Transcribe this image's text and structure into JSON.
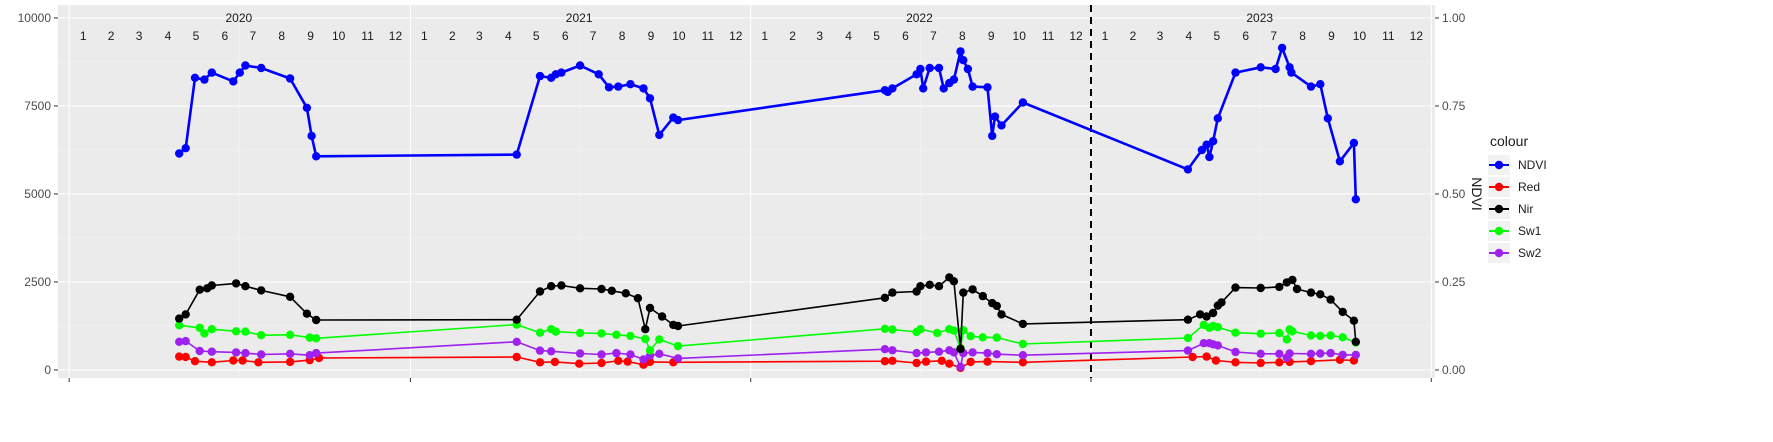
{
  "chart_data": {
    "type": "line",
    "x_axis": {
      "unit": "month",
      "start": "2020-01",
      "end": "2023-12",
      "years": [
        "2020",
        "2021",
        "2022",
        "2023"
      ],
      "month_labels": [
        "1",
        "2",
        "3",
        "4",
        "5",
        "6",
        "7",
        "8",
        "9",
        "10",
        "11",
        "12"
      ],
      "grid": true
    },
    "y_axis_left": {
      "min": 0,
      "max": 10000,
      "ticks": [
        0,
        2500,
        5000,
        7500,
        10000
      ],
      "tick_labels": [
        "0",
        "2500",
        "5000",
        "7500",
        "10000"
      ]
    },
    "y_axis_right": {
      "title": "NDVI",
      "min": 0,
      "max": 1,
      "ticks": [
        0,
        0.25,
        0.5,
        0.75,
        1
      ],
      "tick_labels": [
        "0.00",
        "0.25",
        "0.50",
        "0.75",
        "1.00"
      ]
    },
    "reference_line": {
      "style": "dashed",
      "x": "2023-01-01",
      "color": "#000000"
    },
    "legend": {
      "title": "colour",
      "position": "right",
      "entries": [
        "NDVI",
        "Red",
        "Nir",
        "Sw1",
        "Sw2"
      ]
    },
    "series": [
      {
        "name": "NDVI",
        "color": "#0000ff",
        "axis": "right",
        "points": [
          [
            "2020-04-28",
            0.615
          ],
          [
            "2020-05-05",
            0.63
          ],
          [
            "2020-05-15",
            0.83
          ],
          [
            "2020-05-25",
            0.825
          ],
          [
            "2020-06-02",
            0.845
          ],
          [
            "2020-06-25",
            0.82
          ],
          [
            "2020-07-02",
            0.845
          ],
          [
            "2020-07-08",
            0.865
          ],
          [
            "2020-07-25",
            0.858
          ],
          [
            "2020-08-25",
            0.828
          ],
          [
            "2020-09-12",
            0.745
          ],
          [
            "2020-09-17",
            0.665
          ],
          [
            "2020-09-22",
            0.607
          ],
          [
            "2021-04-25",
            0.612
          ],
          [
            "2021-05-20",
            0.835
          ],
          [
            "2021-06-01",
            0.83
          ],
          [
            "2021-06-06",
            0.84
          ],
          [
            "2021-06-12",
            0.845
          ],
          [
            "2021-07-02",
            0.865
          ],
          [
            "2021-07-22",
            0.84
          ],
          [
            "2021-08-02",
            0.803
          ],
          [
            "2021-08-12",
            0.805
          ],
          [
            "2021-08-25",
            0.812
          ],
          [
            "2021-09-08",
            0.8
          ],
          [
            "2021-09-15",
            0.772
          ],
          [
            "2021-09-25",
            0.668
          ],
          [
            "2021-10-10",
            0.717
          ],
          [
            "2021-10-15",
            0.71
          ],
          [
            "2022-05-25",
            0.795
          ],
          [
            "2022-05-28",
            0.79
          ],
          [
            "2022-06-02",
            0.8
          ],
          [
            "2022-06-28",
            0.84
          ],
          [
            "2022-07-02",
            0.855
          ],
          [
            "2022-07-05",
            0.8
          ],
          [
            "2022-07-12",
            0.858
          ],
          [
            "2022-07-22",
            0.858
          ],
          [
            "2022-07-27",
            0.8
          ],
          [
            "2022-08-02",
            0.815
          ],
          [
            "2022-08-07",
            0.825
          ],
          [
            "2022-08-14",
            0.905
          ],
          [
            "2022-08-17",
            0.88
          ],
          [
            "2022-08-22",
            0.855
          ],
          [
            "2022-08-27",
            0.805
          ],
          [
            "2022-09-12",
            0.803
          ],
          [
            "2022-09-17",
            0.665
          ],
          [
            "2022-09-20",
            0.72
          ],
          [
            "2022-09-27",
            0.695
          ],
          [
            "2022-10-20",
            0.76
          ],
          [
            "2023-04-15",
            0.57
          ],
          [
            "2023-04-30",
            0.625
          ],
          [
            "2023-05-05",
            0.64
          ],
          [
            "2023-05-08",
            0.605
          ],
          [
            "2023-05-12",
            0.65
          ],
          [
            "2023-05-17",
            0.715
          ],
          [
            "2023-06-05",
            0.845
          ],
          [
            "2023-07-02",
            0.86
          ],
          [
            "2023-07-18",
            0.855
          ],
          [
            "2023-07-25",
            0.915
          ],
          [
            "2023-08-02",
            0.86
          ],
          [
            "2023-08-04",
            0.845
          ],
          [
            "2023-08-25",
            0.805
          ],
          [
            "2023-09-04",
            0.812
          ],
          [
            "2023-09-12",
            0.715
          ],
          [
            "2023-09-25",
            0.593
          ],
          [
            "2023-10-10",
            0.645
          ],
          [
            "2023-10-12",
            0.485
          ]
        ]
      },
      {
        "name": "Red",
        "color": "#ff0000",
        "axis": "left",
        "points": [
          [
            "2020-04-28",
            380
          ],
          [
            "2020-05-05",
            370
          ],
          [
            "2020-05-15",
            250
          ],
          [
            "2020-06-02",
            220
          ],
          [
            "2020-06-25",
            270
          ],
          [
            "2020-07-05",
            270
          ],
          [
            "2020-07-22",
            220
          ],
          [
            "2020-08-25",
            230
          ],
          [
            "2020-09-15",
            280
          ],
          [
            "2020-09-25",
            340
          ],
          [
            "2021-04-25",
            370
          ],
          [
            "2021-05-20",
            220
          ],
          [
            "2021-06-05",
            230
          ],
          [
            "2021-07-01",
            180
          ],
          [
            "2021-07-25",
            200
          ],
          [
            "2021-08-12",
            260
          ],
          [
            "2021-08-22",
            240
          ],
          [
            "2021-09-08",
            150
          ],
          [
            "2021-09-15",
            230
          ],
          [
            "2021-10-10",
            220
          ],
          [
            "2022-05-25",
            250
          ],
          [
            "2022-06-02",
            260
          ],
          [
            "2022-06-28",
            200
          ],
          [
            "2022-07-08",
            240
          ],
          [
            "2022-07-25",
            260
          ],
          [
            "2022-08-02",
            180
          ],
          [
            "2022-08-14",
            60
          ],
          [
            "2022-08-25",
            230
          ],
          [
            "2022-09-12",
            240
          ],
          [
            "2022-10-20",
            220
          ],
          [
            "2023-04-20",
            370
          ],
          [
            "2023-05-05",
            380
          ],
          [
            "2023-05-15",
            270
          ],
          [
            "2023-06-05",
            220
          ],
          [
            "2023-07-02",
            200
          ],
          [
            "2023-07-22",
            220
          ],
          [
            "2023-08-02",
            230
          ],
          [
            "2023-08-25",
            250
          ],
          [
            "2023-09-25",
            290
          ],
          [
            "2023-10-10",
            270
          ]
        ]
      },
      {
        "name": "Nir",
        "color": "#000000",
        "axis": "left",
        "points": [
          [
            "2020-04-28",
            1460
          ],
          [
            "2020-05-05",
            1580
          ],
          [
            "2020-05-20",
            2280
          ],
          [
            "2020-05-28",
            2320
          ],
          [
            "2020-06-02",
            2400
          ],
          [
            "2020-06-28",
            2460
          ],
          [
            "2020-07-08",
            2380
          ],
          [
            "2020-07-25",
            2260
          ],
          [
            "2020-08-25",
            2080
          ],
          [
            "2020-09-12",
            1600
          ],
          [
            "2020-09-22",
            1420
          ],
          [
            "2021-04-25",
            1430
          ],
          [
            "2021-05-20",
            2230
          ],
          [
            "2021-06-01",
            2380
          ],
          [
            "2021-06-12",
            2400
          ],
          [
            "2021-07-02",
            2320
          ],
          [
            "2021-07-25",
            2300
          ],
          [
            "2021-08-05",
            2250
          ],
          [
            "2021-08-20",
            2180
          ],
          [
            "2021-09-02",
            2040
          ],
          [
            "2021-09-10",
            1160
          ],
          [
            "2021-09-15",
            1760
          ],
          [
            "2021-09-28",
            1520
          ],
          [
            "2021-10-10",
            1280
          ],
          [
            "2021-10-15",
            1250
          ],
          [
            "2022-05-25",
            2050
          ],
          [
            "2022-06-02",
            2200
          ],
          [
            "2022-06-28",
            2230
          ],
          [
            "2022-07-02",
            2380
          ],
          [
            "2022-07-12",
            2420
          ],
          [
            "2022-07-22",
            2380
          ],
          [
            "2022-08-02",
            2630
          ],
          [
            "2022-08-07",
            2520
          ],
          [
            "2022-08-14",
            600
          ],
          [
            "2022-08-17",
            2200
          ],
          [
            "2022-08-27",
            2290
          ],
          [
            "2022-09-07",
            2100
          ],
          [
            "2022-09-17",
            1900
          ],
          [
            "2022-09-22",
            1820
          ],
          [
            "2022-09-27",
            1580
          ],
          [
            "2022-10-20",
            1310
          ],
          [
            "2023-04-15",
            1430
          ],
          [
            "2023-04-28",
            1580
          ],
          [
            "2023-05-05",
            1520
          ],
          [
            "2023-05-12",
            1620
          ],
          [
            "2023-05-17",
            1830
          ],
          [
            "2023-05-21",
            1920
          ],
          [
            "2023-06-05",
            2340
          ],
          [
            "2023-07-02",
            2330
          ],
          [
            "2023-07-22",
            2360
          ],
          [
            "2023-07-30",
            2490
          ],
          [
            "2023-08-05",
            2560
          ],
          [
            "2023-08-10",
            2300
          ],
          [
            "2023-08-25",
            2200
          ],
          [
            "2023-09-04",
            2150
          ],
          [
            "2023-09-15",
            2000
          ],
          [
            "2023-09-28",
            1650
          ],
          [
            "2023-10-10",
            1400
          ],
          [
            "2023-10-12",
            800
          ]
        ]
      },
      {
        "name": "Sw1",
        "color": "#00ff00",
        "axis": "left",
        "points": [
          [
            "2020-04-28",
            1270
          ],
          [
            "2020-05-20",
            1200
          ],
          [
            "2020-05-25",
            1040
          ],
          [
            "2020-06-02",
            1160
          ],
          [
            "2020-06-28",
            1100
          ],
          [
            "2020-07-08",
            1090
          ],
          [
            "2020-07-25",
            990
          ],
          [
            "2020-08-25",
            1000
          ],
          [
            "2020-09-15",
            920
          ],
          [
            "2020-09-22",
            900
          ],
          [
            "2021-04-25",
            1290
          ],
          [
            "2021-05-20",
            1060
          ],
          [
            "2021-06-01",
            1160
          ],
          [
            "2021-06-06",
            1090
          ],
          [
            "2021-07-02",
            1050
          ],
          [
            "2021-07-25",
            1040
          ],
          [
            "2021-08-10",
            1000
          ],
          [
            "2021-08-25",
            970
          ],
          [
            "2021-09-10",
            880
          ],
          [
            "2021-09-15",
            560
          ],
          [
            "2021-09-25",
            870
          ],
          [
            "2021-10-15",
            680
          ],
          [
            "2022-05-25",
            1170
          ],
          [
            "2022-06-02",
            1150
          ],
          [
            "2022-06-28",
            1080
          ],
          [
            "2022-07-02",
            1160
          ],
          [
            "2022-07-20",
            1050
          ],
          [
            "2022-08-02",
            1160
          ],
          [
            "2022-08-07",
            1120
          ],
          [
            "2022-08-14",
            620
          ],
          [
            "2022-08-17",
            1130
          ],
          [
            "2022-08-25",
            960
          ],
          [
            "2022-09-07",
            930
          ],
          [
            "2022-09-22",
            920
          ],
          [
            "2022-10-20",
            740
          ],
          [
            "2023-04-15",
            910
          ],
          [
            "2023-05-02",
            1280
          ],
          [
            "2023-05-08",
            1200
          ],
          [
            "2023-05-12",
            1250
          ],
          [
            "2023-05-17",
            1220
          ],
          [
            "2023-06-05",
            1060
          ],
          [
            "2023-07-02",
            1030
          ],
          [
            "2023-07-22",
            1050
          ],
          [
            "2023-07-30",
            870
          ],
          [
            "2023-08-02",
            1150
          ],
          [
            "2023-08-05",
            1100
          ],
          [
            "2023-08-25",
            980
          ],
          [
            "2023-09-04",
            970
          ],
          [
            "2023-09-15",
            980
          ],
          [
            "2023-09-28",
            930
          ],
          [
            "2023-10-12",
            780
          ]
        ]
      },
      {
        "name": "Sw2",
        "color": "#a020f0",
        "axis": "left",
        "points": [
          [
            "2020-04-28",
            800
          ],
          [
            "2020-05-05",
            820
          ],
          [
            "2020-05-20",
            540
          ],
          [
            "2020-06-02",
            520
          ],
          [
            "2020-06-28",
            500
          ],
          [
            "2020-07-08",
            480
          ],
          [
            "2020-07-25",
            440
          ],
          [
            "2020-08-25",
            460
          ],
          [
            "2020-09-15",
            420
          ],
          [
            "2020-09-22",
            480
          ],
          [
            "2021-04-25",
            800
          ],
          [
            "2021-05-20",
            550
          ],
          [
            "2021-06-01",
            530
          ],
          [
            "2021-07-02",
            470
          ],
          [
            "2021-07-25",
            440
          ],
          [
            "2021-08-10",
            480
          ],
          [
            "2021-08-25",
            440
          ],
          [
            "2021-09-08",
            300
          ],
          [
            "2021-09-15",
            410
          ],
          [
            "2021-09-25",
            460
          ],
          [
            "2021-10-15",
            330
          ],
          [
            "2022-05-25",
            590
          ],
          [
            "2022-06-02",
            560
          ],
          [
            "2022-06-28",
            480
          ],
          [
            "2022-07-08",
            500
          ],
          [
            "2022-07-22",
            520
          ],
          [
            "2022-08-02",
            560
          ],
          [
            "2022-08-07",
            500
          ],
          [
            "2022-08-14",
            90
          ],
          [
            "2022-08-17",
            480
          ],
          [
            "2022-08-27",
            500
          ],
          [
            "2022-09-12",
            480
          ],
          [
            "2022-09-22",
            450
          ],
          [
            "2022-10-20",
            420
          ],
          [
            "2023-04-15",
            550
          ],
          [
            "2023-05-02",
            760
          ],
          [
            "2023-05-08",
            760
          ],
          [
            "2023-05-12",
            730
          ],
          [
            "2023-05-17",
            700
          ],
          [
            "2023-06-05",
            510
          ],
          [
            "2023-07-02",
            460
          ],
          [
            "2023-07-22",
            460
          ],
          [
            "2023-07-30",
            350
          ],
          [
            "2023-08-02",
            470
          ],
          [
            "2023-08-25",
            460
          ],
          [
            "2023-09-04",
            470
          ],
          [
            "2023-09-15",
            480
          ],
          [
            "2023-09-28",
            430
          ],
          [
            "2023-10-12",
            430
          ]
        ]
      }
    ]
  }
}
